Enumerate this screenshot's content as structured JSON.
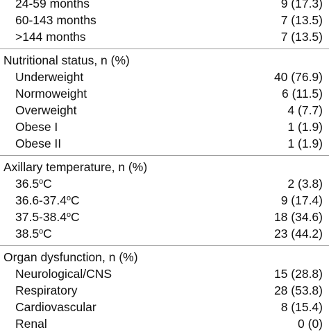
{
  "rows": [
    {
      "type": "item",
      "label": "24-59 months",
      "value": "9 (17.3)"
    },
    {
      "type": "item",
      "label": "60-143 months",
      "value": "7 (13.5)"
    },
    {
      "type": "item",
      "label": ">144 months",
      "value": "7 (13.5)"
    },
    {
      "type": "rule"
    },
    {
      "type": "section",
      "label": "Nutritional status, n (%)"
    },
    {
      "type": "item",
      "label": "Underweight",
      "value": "40 (76.9)"
    },
    {
      "type": "item",
      "label": "Normoweight",
      "value": "6 (11.5)"
    },
    {
      "type": "item",
      "label": "Overweight",
      "value": "4 (7.7)"
    },
    {
      "type": "item",
      "label": "Obese I",
      "value": "1 (1.9)"
    },
    {
      "type": "item",
      "label": "Obese II",
      "value": "1 (1.9)"
    },
    {
      "type": "rule"
    },
    {
      "type": "section",
      "label": "Axillary temperature, n (%)"
    },
    {
      "type": "item",
      "label_prefix": "36.5",
      "label_sup": "o",
      "label_suffix": "C",
      "value": "2 (3.8)"
    },
    {
      "type": "item",
      "label_prefix": "36.6-37.4",
      "label_sup": "o",
      "label_suffix": "C",
      "value": "9 (17.4)"
    },
    {
      "type": "item",
      "label_prefix": "37.5-38.4",
      "label_sup": "o",
      "label_suffix": "C",
      "value": "18 (34.6)"
    },
    {
      "type": "item",
      "label_prefix": "38.5",
      "label_sup": "o",
      "label_suffix": "C",
      "value": "23 (44.2)"
    },
    {
      "type": "rule"
    },
    {
      "type": "section",
      "label": "Organ dysfunction, n (%)"
    },
    {
      "type": "item",
      "label": "Neurological/CNS",
      "value": "15 (28.8)"
    },
    {
      "type": "item",
      "label": "Respiratory",
      "value": "28 (53.8)"
    },
    {
      "type": "item",
      "label": "Cardiovascular",
      "value": "8 (15.4)"
    },
    {
      "type": "item",
      "label": "Renal",
      "value": "0 (0)"
    }
  ]
}
